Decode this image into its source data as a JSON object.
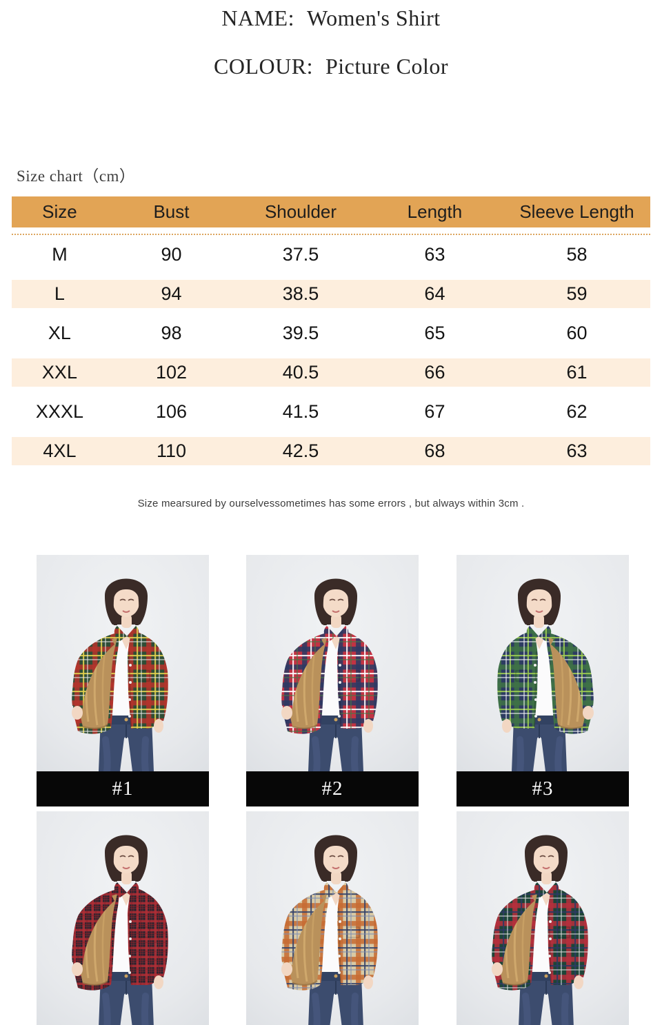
{
  "header": {
    "name_label": "NAME:",
    "name_value": "Women's Shirt",
    "colour_label": "COLOUR:",
    "colour_value": "Picture Color"
  },
  "size_chart": {
    "caption": "Size chart（cm）",
    "columns": [
      "Size",
      "Bust",
      "Shoulder",
      "Length",
      "Sleeve Length"
    ],
    "rows": [
      [
        "M",
        "90",
        "37.5",
        "63",
        "58"
      ],
      [
        "L",
        "94",
        "38.5",
        "64",
        "59"
      ],
      [
        "XL",
        "98",
        "39.5",
        "65",
        "60"
      ],
      [
        "XXL",
        "102",
        "40.5",
        "66",
        "61"
      ],
      [
        "XXXL",
        "106",
        "41.5",
        "67",
        "62"
      ],
      [
        "4XL",
        "110",
        "42.5",
        "68",
        "63"
      ]
    ],
    "colors": {
      "header_bg": "#e2a455",
      "alt_row_bg": "#fdeedd",
      "dotted_line": "#dca45c",
      "header_text": "#1d1d1d",
      "cell_text": "#141414"
    }
  },
  "note": "Size mearsured by ourselvessometimes has some errors , but always within 3cm .",
  "gallery": {
    "label_bar_bg": "#070707",
    "fur_color": "#b9915b",
    "items": [
      {
        "label": "#1",
        "has_label": true,
        "flip": false,
        "colors": {
          "base": "#2f4d36",
          "band": "#b5342c",
          "accent": "#e3d24f",
          "thin": "#e8e8e8"
        }
      },
      {
        "label": "#2",
        "has_label": true,
        "flip": false,
        "colors": {
          "base": "#c13343",
          "band": "#2c3a64",
          "accent": "#ffffff",
          "thin": "#3f7d46"
        }
      },
      {
        "label": "#3",
        "has_label": true,
        "flip": true,
        "colors": {
          "base": "#2d3c62",
          "band": "#3e7245",
          "accent": "#9fce52",
          "thin": "#ffffff"
        }
      },
      {
        "label": "",
        "has_label": false,
        "flip": false,
        "colors": {
          "base": "#23242f",
          "band": "#b02e35",
          "accent": "#8f2028",
          "thin": "#b02e35",
          "small": true
        }
      },
      {
        "label": "",
        "has_label": false,
        "flip": false,
        "colors": {
          "base": "#d9c9a4",
          "band": "#c76b33",
          "accent": "#34436b",
          "thin": "#7d8fb5"
        }
      },
      {
        "label": "",
        "has_label": false,
        "flip": false,
        "colors": {
          "base": "#1e4538",
          "band": "#b72f3c",
          "accent": "#2c3a64",
          "thin": "#e0e0e0"
        }
      }
    ]
  }
}
